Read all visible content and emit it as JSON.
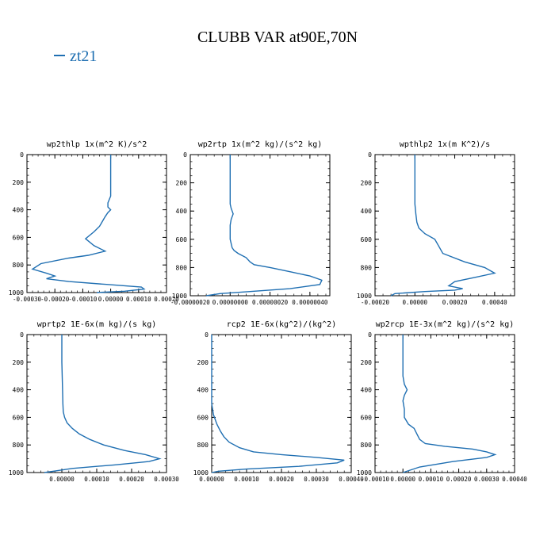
{
  "title": "CLUBB VAR at90E,70N",
  "legend": {
    "label": "zt21",
    "color": "#1f6fb2"
  },
  "chart_data": [
    {
      "type": "line",
      "title": "wp2thlp  1x(m^2 K)/s^2",
      "xlim": [
        -0.0003,
        0.0002
      ],
      "xticks": [
        -0.0003,
        -0.0002,
        -0.0001,
        0.0,
        0.0001,
        0.0002
      ],
      "xticklabels": [
        "-0.00030",
        "-0.00020",
        "-0.00010",
        "0.00000",
        "0.00010",
        "0.00020"
      ],
      "ylim": [
        1000,
        0
      ],
      "yticks": [
        0,
        200,
        400,
        600,
        800,
        1000
      ],
      "series": [
        {
          "name": "zt21",
          "color": "#1f6fb2",
          "x": [
            0.0,
            0.0,
            0.0,
            -1e-05,
            -1e-05,
            0.0,
            -1e-05,
            -2e-05,
            -4e-05,
            -6e-05,
            -9e-05,
            -6e-05,
            -2e-05,
            -8e-05,
            -0.00015,
            -0.00025,
            -0.00028,
            -0.00023,
            -0.0002,
            -0.00023,
            -0.00015,
            -2e-05,
            0.00011,
            0.00012,
            5e-05,
            -5e-05
          ],
          "y": [
            0,
            200,
            300,
            350,
            380,
            400,
            420,
            450,
            520,
            560,
            610,
            660,
            700,
            730,
            750,
            790,
            830,
            860,
            880,
            900,
            920,
            940,
            960,
            975,
            990,
            1000
          ]
        }
      ]
    },
    {
      "type": "line",
      "title": "wp2rtp  1x(m^2 kg)/(s^2 kg)",
      "xlim": [
        -2e-07,
        5e-07
      ],
      "xticks": [
        -2e-07,
        0.0,
        2e-07,
        4e-07
      ],
      "xticklabels": [
        "-0.00000020",
        "0.00000000",
        "0.00000020",
        "0.00000040"
      ],
      "ylim": [
        1000,
        0
      ],
      "yticks": [
        0,
        200,
        400,
        600,
        800,
        1000
      ],
      "series": [
        {
          "name": "zt21",
          "color": "#1f6fb2",
          "x": [
            0.0,
            0.0,
            0.0,
            5e-09,
            1.5e-08,
            5e-09,
            0.0,
            0.0,
            1e-08,
            2e-08,
            4e-08,
            8e-08,
            1e-07,
            1.2e-07,
            2e-07,
            3e-07,
            4e-07,
            4.6e-07,
            4.5e-07,
            3e-07,
            1e-07,
            -5e-08,
            -1.2e-07
          ],
          "y": [
            0,
            200,
            350,
            380,
            420,
            460,
            500,
            600,
            660,
            680,
            700,
            730,
            760,
            780,
            800,
            830,
            860,
            890,
            920,
            950,
            970,
            985,
            1000
          ]
        }
      ]
    },
    {
      "type": "line",
      "title": "wpthlp2  1x(m K^2)/s",
      "xlim": [
        -0.0002,
        0.0005
      ],
      "xticks": [
        -0.0002,
        0.0,
        0.0002,
        0.0004
      ],
      "xticklabels": [
        "-0.00020",
        "0.00000",
        "0.00020",
        "0.00040"
      ],
      "ylim": [
        1000,
        0
      ],
      "yticks": [
        0,
        200,
        400,
        600,
        800,
        1000
      ],
      "series": [
        {
          "name": "zt21",
          "color": "#1f6fb2",
          "x": [
            0.0,
            0.0,
            0.0,
            5e-06,
            1e-05,
            2e-05,
            5e-05,
            0.0001,
            0.00012,
            0.00014,
            0.00025,
            0.00035,
            0.0004,
            0.0003,
            0.0002,
            0.00017,
            0.00024,
            0.0002,
            5e-05,
            -0.0001,
            -0.00012
          ],
          "y": [
            0,
            200,
            350,
            420,
            480,
            520,
            560,
            600,
            650,
            700,
            760,
            800,
            840,
            870,
            900,
            930,
            950,
            960,
            970,
            985,
            1000
          ]
        }
      ]
    },
    {
      "type": "line",
      "title": "wprtp2  1E-6x(m kg)/(s kg)",
      "xlim": [
        -0.0001,
        0.0003
      ],
      "xticks": [
        0.0,
        0.0001,
        0.0002,
        0.0003
      ],
      "xticklabels": [
        "0.00000",
        "0.00010",
        "0.00020",
        "0.00030"
      ],
      "ylim": [
        1000,
        0
      ],
      "yticks": [
        0,
        200,
        400,
        600,
        800,
        1000
      ],
      "series": [
        {
          "name": "zt21",
          "color": "#1f6fb2",
          "x": [
            0.0,
            0.0,
            2e-06,
            3e-06,
            4e-06,
            8e-06,
            1.5e-05,
            3e-05,
            5e-05,
            8e-05,
            0.00012,
            0.00018,
            0.00024,
            0.00028,
            0.00025,
            0.00015,
            3e-05,
            -1e-05,
            -5e-05
          ],
          "y": [
            0,
            200,
            400,
            500,
            560,
            600,
            640,
            680,
            720,
            760,
            800,
            840,
            870,
            900,
            920,
            945,
            970,
            985,
            1000
          ]
        }
      ]
    },
    {
      "type": "line",
      "title": "rcp2  1E-6x(kg^2)/(kg^2)",
      "xlim": [
        0.0,
        0.0004
      ],
      "xticks": [
        0.0,
        0.0001,
        0.0002,
        0.0003,
        0.0004
      ],
      "xticklabels": [
        "0.00000",
        "0.00010",
        "0.00020",
        "0.00030",
        "0.00040"
      ],
      "ylim": [
        1000,
        0
      ],
      "yticks": [
        0,
        200,
        400,
        600,
        800,
        1000
      ],
      "series": [
        {
          "name": "zt21",
          "color": "#1f6fb2",
          "x": [
            0.0,
            0.0,
            0.0,
            5e-06,
            1.5e-05,
            2.5e-05,
            3.5e-05,
            5e-05,
            8e-05,
            0.00012,
            0.0002,
            0.0003,
            0.00038,
            0.00036,
            0.00025,
            0.0001,
            2e-05,
            0.0
          ],
          "y": [
            0,
            400,
            500,
            580,
            650,
            700,
            740,
            780,
            820,
            850,
            870,
            890,
            910,
            930,
            955,
            975,
            990,
            1000
          ]
        }
      ]
    },
    {
      "type": "line",
      "title": "wp2rcp  1E-3x(m^2 kg)/(s^2 kg)",
      "xlim": [
        -0.0001,
        0.0004
      ],
      "xticks": [
        -0.0001,
        0.0,
        0.0001,
        0.0002,
        0.0003,
        0.0004
      ],
      "xticklabels": [
        "-0.00010",
        "0.00000",
        "0.00010",
        "0.00020",
        "0.00030",
        "0.00040"
      ],
      "ylim": [
        1000,
        0
      ],
      "yticks": [
        0,
        200,
        400,
        600,
        800,
        1000
      ],
      "series": [
        {
          "name": "zt21",
          "color": "#1f6fb2",
          "x": [
            0.0,
            0.0,
            5e-06,
            1.5e-05,
            5e-06,
            0.0,
            5e-06,
            5e-06,
            2e-05,
            4e-05,
            5e-05,
            6e-05,
            8e-05,
            0.00015,
            0.00025,
            0.0003,
            0.00033,
            0.0003,
            0.00018,
            6e-05,
            0.0
          ],
          "y": [
            0,
            300,
            360,
            400,
            440,
            480,
            540,
            600,
            650,
            680,
            720,
            760,
            790,
            810,
            830,
            850,
            870,
            890,
            920,
            960,
            1000
          ]
        }
      ]
    }
  ]
}
